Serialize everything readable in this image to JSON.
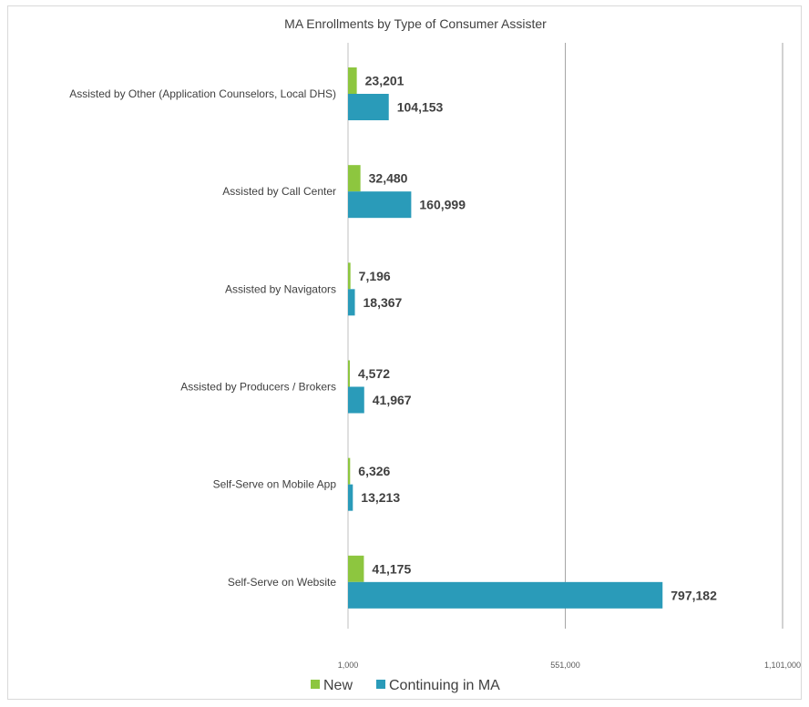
{
  "chart_data": {
    "type": "bar",
    "orientation": "horizontal",
    "title": "MA Enrollments by Type of Consumer Assister",
    "categories": [
      "Assisted by Other (Application Counselors, Local DHS)",
      "Assisted by Call Center",
      "Assisted by Navigators",
      "Assisted by Producers / Brokers",
      "Self-Serve on Mobile App",
      "Self-Serve on Website"
    ],
    "series": [
      {
        "name": "New",
        "color": "#8dc63f",
        "values": [
          23201,
          32480,
          7196,
          4572,
          6326,
          41175
        ],
        "labels": [
          "23,201",
          "32,480",
          "7,196",
          "4,572",
          "6,326",
          "41,175"
        ]
      },
      {
        "name": "Continuing in MA",
        "color": "#2a9bb9",
        "values": [
          104153,
          160999,
          18367,
          41967,
          13213,
          797182
        ],
        "labels": [
          "104,153",
          "160,999",
          "18,367",
          "41,967",
          "13,213",
          "797,182"
        ]
      }
    ],
    "xlim": [
      1000,
      1101000
    ],
    "xticks": [
      1000,
      551000,
      1101000
    ],
    "xtick_labels": [
      "1,000",
      "551,000",
      "1,101,000"
    ],
    "grid": true,
    "legend_position": "bottom"
  }
}
